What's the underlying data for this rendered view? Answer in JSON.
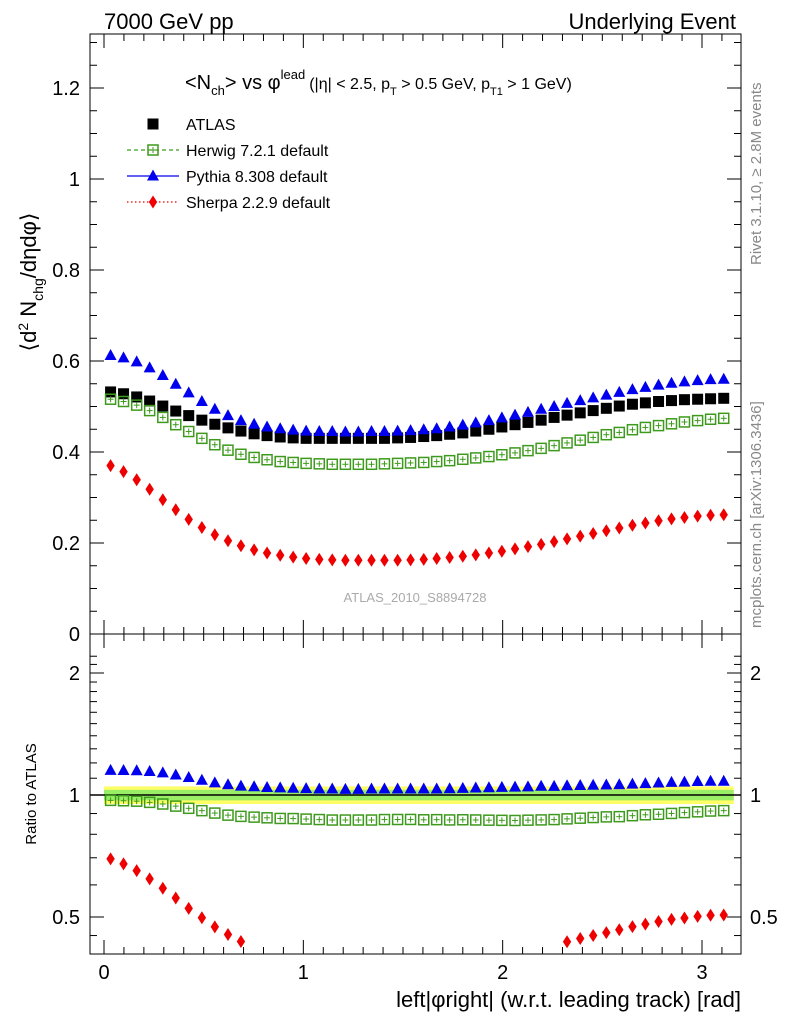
{
  "header": {
    "left_label": "7000 GeV pp",
    "right_label": "Underlying Event"
  },
  "side_labels": {
    "rivet": "Rivet 3.1.10, ≥ 2.8M events",
    "mcplots": "mcplots.cern.ch [arXiv:1306.3436]"
  },
  "watermark": "ATLAS_2010_S8894728",
  "title": {
    "main_pre": "<N",
    "main_sub": "ch",
    "main_mid": "> vs φ",
    "main_sup": "lead",
    "cond_1": "(|η| < 2.5, p",
    "cond_sub1": "T",
    "cond_2": " > 0.5 GeV, p",
    "cond_sub2": "T1",
    "cond_3": " > 1 GeV)"
  },
  "axes": {
    "ylabel_main_pre": "⟨d",
    "ylabel_main_sup": "2",
    "ylabel_main_mid": " N",
    "ylabel_main_sub": "chg",
    "ylabel_main_post": "/dηdφ⟩",
    "ylabel_ratio": "Ratio to ATLAS",
    "xlabel": "left|φright| (w.r.t. leading track) [rad]",
    "main_yticks": [
      "0",
      "0.2",
      "0.4",
      "0.6",
      "0.8",
      "1",
      "1.2"
    ],
    "ratio_yticks_left": [
      "0.5",
      "1",
      "2"
    ],
    "ratio_yticks_right": [
      "0.5",
      "1",
      "2"
    ],
    "xticks": [
      "0",
      "1",
      "2",
      "3"
    ]
  },
  "colors": {
    "atlas": "#000000",
    "herwig": "#3d9a1c",
    "pythia": "#0000ee",
    "sherpa": "#ee0000",
    "band_inner": "#99ee66",
    "band_outer": "#ffff66"
  },
  "chart_data": {
    "type": "scatter",
    "title": "<Nch> vs φlead (|η| < 2.5, pT > 0.5 GeV, pT1 > 1 GeV)",
    "xlabel": "left|φright| (w.r.t. leading track) [rad]",
    "ylabel": "⟨d2 Nchg/dηdφ⟩",
    "xlim": [
      -0.1,
      3.2
    ],
    "ylim": [
      0,
      1.32
    ],
    "ratio_ylim": [
      0.43,
      2.35
    ],
    "ratio_scale": "log",
    "grid": false,
    "legend_position": "top-left",
    "legend": [
      "ATLAS",
      "Herwig 7.2.1 default",
      "Pythia 8.308 default",
      "Sherpa 2.2.9 default"
    ],
    "x": [
      0.033,
      0.098,
      0.164,
      0.229,
      0.295,
      0.36,
      0.425,
      0.491,
      0.556,
      0.622,
      0.687,
      0.753,
      0.818,
      0.884,
      0.949,
      1.014,
      1.08,
      1.145,
      1.211,
      1.276,
      1.342,
      1.407,
      1.473,
      1.538,
      1.604,
      1.669,
      1.734,
      1.8,
      1.865,
      1.931,
      1.996,
      2.062,
      2.127,
      2.193,
      2.258,
      2.323,
      2.389,
      2.454,
      2.52,
      2.585,
      2.651,
      2.716,
      2.782,
      2.847,
      2.912,
      2.978,
      3.043,
      3.109
    ],
    "series": [
      {
        "name": "ATLAS",
        "marker": "square-filled",
        "values": [
          0.532,
          0.528,
          0.521,
          0.512,
          0.501,
          0.49,
          0.48,
          0.47,
          0.461,
          0.453,
          0.446,
          0.44,
          0.436,
          0.433,
          0.431,
          0.43,
          0.43,
          0.43,
          0.43,
          0.43,
          0.43,
          0.43,
          0.431,
          0.432,
          0.434,
          0.436,
          0.439,
          0.442,
          0.446,
          0.45,
          0.455,
          0.46,
          0.465,
          0.47,
          0.476,
          0.481,
          0.486,
          0.491,
          0.496,
          0.501,
          0.505,
          0.508,
          0.511,
          0.513,
          0.515,
          0.516,
          0.517,
          0.518
        ]
      },
      {
        "name": "Herwig 7.2.1 default",
        "marker": "square-open",
        "values": [
          0.516,
          0.511,
          0.503,
          0.491,
          0.476,
          0.46,
          0.445,
          0.43,
          0.416,
          0.404,
          0.395,
          0.388,
          0.383,
          0.379,
          0.377,
          0.375,
          0.374,
          0.373,
          0.373,
          0.373,
          0.373,
          0.374,
          0.375,
          0.376,
          0.377,
          0.379,
          0.381,
          0.384,
          0.387,
          0.39,
          0.394,
          0.398,
          0.403,
          0.408,
          0.414,
          0.42,
          0.426,
          0.432,
          0.438,
          0.443,
          0.449,
          0.454,
          0.458,
          0.462,
          0.466,
          0.469,
          0.472,
          0.474
        ]
      },
      {
        "name": "Pythia 8.308 default",
        "marker": "triangle-up",
        "values": [
          0.612,
          0.607,
          0.598,
          0.585,
          0.568,
          0.549,
          0.53,
          0.511,
          0.494,
          0.48,
          0.469,
          0.461,
          0.455,
          0.451,
          0.448,
          0.446,
          0.445,
          0.445,
          0.444,
          0.444,
          0.445,
          0.445,
          0.446,
          0.447,
          0.449,
          0.451,
          0.455,
          0.459,
          0.464,
          0.469,
          0.475,
          0.481,
          0.487,
          0.494,
          0.5,
          0.507,
          0.513,
          0.519,
          0.525,
          0.531,
          0.537,
          0.542,
          0.547,
          0.551,
          0.554,
          0.557,
          0.559,
          0.56
        ]
      },
      {
        "name": "Sherpa 2.2.9 default",
        "marker": "diamond",
        "values": [
          0.37,
          0.357,
          0.339,
          0.318,
          0.295,
          0.273,
          0.252,
          0.234,
          0.218,
          0.205,
          0.194,
          0.185,
          0.178,
          0.173,
          0.169,
          0.166,
          0.164,
          0.163,
          0.162,
          0.162,
          0.162,
          0.162,
          0.162,
          0.163,
          0.164,
          0.166,
          0.168,
          0.171,
          0.174,
          0.178,
          0.182,
          0.187,
          0.192,
          0.197,
          0.203,
          0.209,
          0.215,
          0.221,
          0.227,
          0.233,
          0.239,
          0.244,
          0.249,
          0.253,
          0.256,
          0.259,
          0.261,
          0.262
        ]
      }
    ]
  }
}
